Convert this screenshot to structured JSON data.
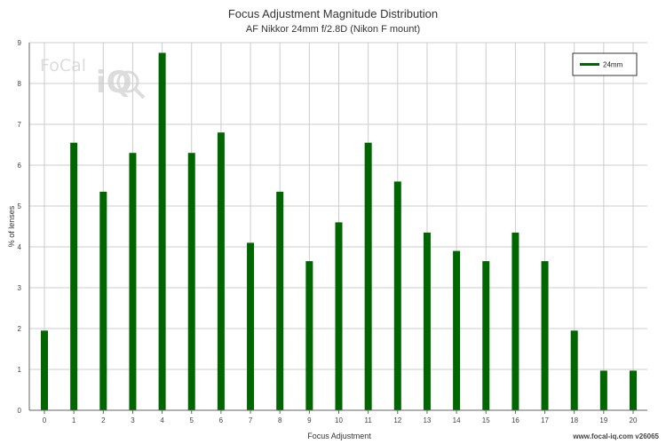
{
  "chart_data": {
    "type": "bar",
    "title": "Focus Adjustment Magnitude Distribution",
    "subtitle": "AF Nikkor 24mm f/2.8D (Nikon F mount)",
    "xlabel": "Focus Adjustment",
    "ylabel": "% of lenses",
    "categories": [
      "0",
      "1",
      "2",
      "3",
      "4",
      "5",
      "6",
      "7",
      "8",
      "9",
      "10",
      "11",
      "12",
      "13",
      "14",
      "15",
      "16",
      "17",
      "18",
      "19",
      "20"
    ],
    "series": [
      {
        "name": "24mm",
        "color": "#006600",
        "values": [
          1.95,
          6.55,
          5.35,
          6.3,
          8.75,
          6.3,
          6.8,
          4.1,
          5.35,
          3.65,
          4.6,
          6.55,
          5.6,
          4.35,
          3.9,
          3.65,
          4.35,
          3.65,
          1.95,
          0.97,
          0.97
        ]
      }
    ],
    "ylim": [
      0,
      9
    ],
    "yticks": [
      0,
      1,
      2,
      3,
      4,
      5,
      6,
      7,
      8,
      9
    ],
    "grid": true,
    "legend_position": "top-right"
  },
  "logo": {
    "text": "FoCal iQ"
  },
  "footer": {
    "watermark": "www.focal-iq.com  v26065"
  },
  "colors": {
    "bar": "#006600",
    "grid": "#cccccc",
    "axis": "#666666"
  }
}
